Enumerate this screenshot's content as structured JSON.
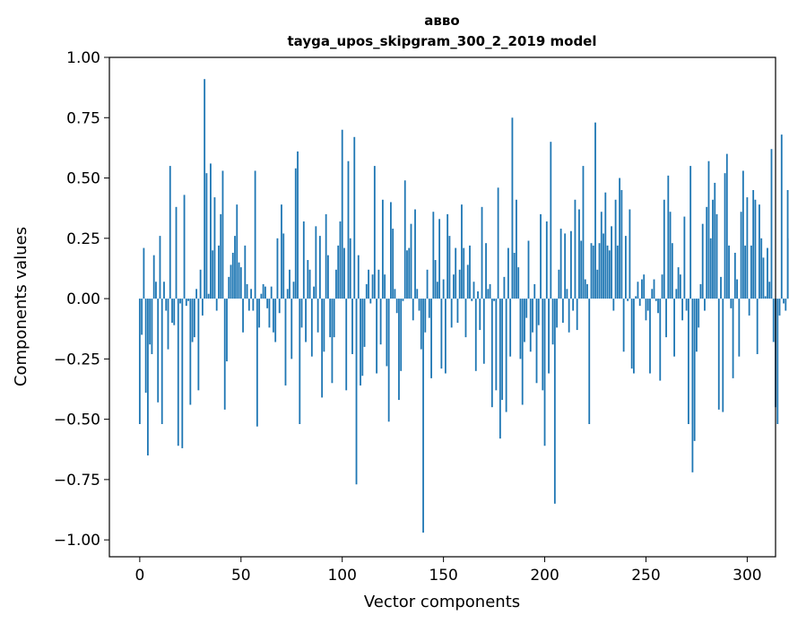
{
  "chart_data": {
    "type": "bar",
    "title_line1": "авво",
    "title_line2": "tayga_upos_skipgram_300_2_2019 model",
    "xlabel": "Vector components",
    "ylabel": "Components values",
    "xlim": [
      -15,
      314
    ],
    "ylim": [
      -1.07,
      1.0
    ],
    "xticks": [
      0,
      50,
      100,
      150,
      200,
      250,
      300
    ],
    "xtick_labels": [
      "0",
      "50",
      "100",
      "150",
      "200",
      "250",
      "300"
    ],
    "yticks": [
      1.0,
      0.75,
      0.5,
      0.25,
      0.0,
      -0.25,
      -0.5,
      -0.75,
      -1.0
    ],
    "ytick_labels": [
      "1.00",
      "0.75",
      "0.50",
      "0.25",
      "0.00",
      "−0.25",
      "−0.50",
      "−0.75",
      "−1.00"
    ],
    "grid": false,
    "bar_color": "#1f77b4",
    "values": [
      -0.52,
      -0.15,
      0.21,
      -0.39,
      -0.65,
      -0.19,
      -0.23,
      0.18,
      0.07,
      -0.43,
      0.26,
      -0.52,
      0.07,
      -0.05,
      -0.21,
      0.55,
      -0.1,
      -0.11,
      0.38,
      -0.61,
      -0.02,
      -0.62,
      0.43,
      -0.03,
      -0.01,
      -0.44,
      -0.18,
      -0.16,
      0.04,
      -0.38,
      0.12,
      -0.07,
      0.91,
      0.52,
      0.02,
      0.56,
      0.2,
      0.42,
      -0.05,
      0.22,
      0.35,
      0.53,
      -0.46,
      -0.26,
      0.09,
      0.14,
      0.19,
      0.26,
      0.39,
      0.15,
      0.13,
      -0.14,
      0.22,
      0.06,
      -0.05,
      0.04,
      -0.05,
      0.53,
      -0.53,
      -0.12,
      0.02,
      0.06,
      0.05,
      -0.04,
      -0.12,
      0.05,
      -0.14,
      -0.18,
      0.25,
      -0.06,
      0.39,
      0.27,
      -0.36,
      0.04,
      0.12,
      -0.25,
      0.07,
      0.54,
      0.61,
      -0.52,
      -0.12,
      0.32,
      -0.18,
      0.16,
      0.12,
      -0.24,
      0.05,
      0.3,
      -0.14,
      0.26,
      -0.41,
      -0.22,
      0.35,
      0.18,
      -0.16,
      -0.35,
      -0.16,
      0.12,
      0.22,
      0.32,
      0.7,
      0.21,
      -0.38,
      0.57,
      0.25,
      -0.23,
      0.67,
      -0.77,
      0.18,
      -0.36,
      -0.32,
      -0.2,
      0.06,
      0.12,
      -0.02,
      0.1,
      0.55,
      -0.31,
      0.12,
      -0.19,
      0.41,
      0.1,
      -0.28,
      -0.51,
      0.4,
      0.29,
      0.04,
      -0.06,
      -0.42,
      -0.3,
      -0.01,
      0.49,
      0.2,
      0.21,
      0.31,
      -0.09,
      0.37,
      0.04,
      -0.05,
      -0.21,
      -0.97,
      -0.14,
      0.12,
      -0.08,
      -0.33,
      0.36,
      0.16,
      0.07,
      0.33,
      -0.29,
      0.08,
      -0.31,
      0.35,
      0.26,
      -0.12,
      0.1,
      0.21,
      -0.1,
      0.12,
      0.39,
      0.21,
      -0.16,
      0.14,
      0.22,
      -0.01,
      0.07,
      -0.3,
      0.03,
      -0.13,
      0.38,
      -0.27,
      0.23,
      0.04,
      0.06,
      -0.45,
      -0.01,
      -0.38,
      0.46,
      -0.58,
      -0.42,
      0.09,
      -0.47,
      0.21,
      -0.24,
      0.75,
      0.19,
      0.41,
      0.13,
      -0.25,
      -0.44,
      -0.18,
      -0.08,
      0.24,
      -0.22,
      -0.14,
      0.06,
      -0.35,
      -0.11,
      0.35,
      -0.38,
      -0.61,
      0.32,
      -0.31,
      0.65,
      -0.19,
      -0.85,
      -0.12,
      0.12,
      0.29,
      -0.1,
      0.27,
      0.04,
      -0.14,
      0.28,
      -0.05,
      0.41,
      -0.13,
      0.37,
      0.24,
      0.55,
      0.08,
      0.06,
      -0.52,
      0.23,
      0.22,
      0.73,
      0.12,
      0.23,
      0.36,
      0.27,
      0.44,
      0.22,
      0.2,
      0.3,
      -0.05,
      0.41,
      0.22,
      0.5,
      0.45,
      -0.22,
      0.26,
      -0.01,
      0.37,
      -0.29,
      -0.31,
      0.01,
      0.07,
      -0.03,
      0.08,
      0.1,
      -0.09,
      -0.05,
      -0.31,
      0.04,
      0.08,
      -0.01,
      -0.06,
      -0.34,
      0.1,
      0.41,
      -0.16,
      0.51,
      0.36,
      0.23,
      -0.24,
      0.04,
      0.13,
      0.1,
      -0.09,
      0.34,
      -0.05,
      -0.52,
      0.55,
      -0.72,
      -0.59,
      -0.22,
      -0.12,
      0.06,
      0.31,
      -0.05,
      0.38,
      0.57,
      0.25,
      0.41,
      0.48,
      0.35,
      -0.46,
      0.09,
      -0.47,
      0.52,
      0.6,
      0.22,
      -0.04,
      -0.33,
      0.19,
      0.08,
      -0.24,
      0.36,
      0.53,
      0.22,
      0.42,
      -0.07,
      0.22,
      0.45,
      0.41,
      -0.23,
      0.39,
      0.25,
      0.17,
      0.01,
      0.21,
      0.07,
      0.62,
      -0.18,
      -0.45,
      -0.52,
      -0.07,
      0.68,
      -0.02,
      -0.05,
      0.45,
      0.25
    ]
  }
}
